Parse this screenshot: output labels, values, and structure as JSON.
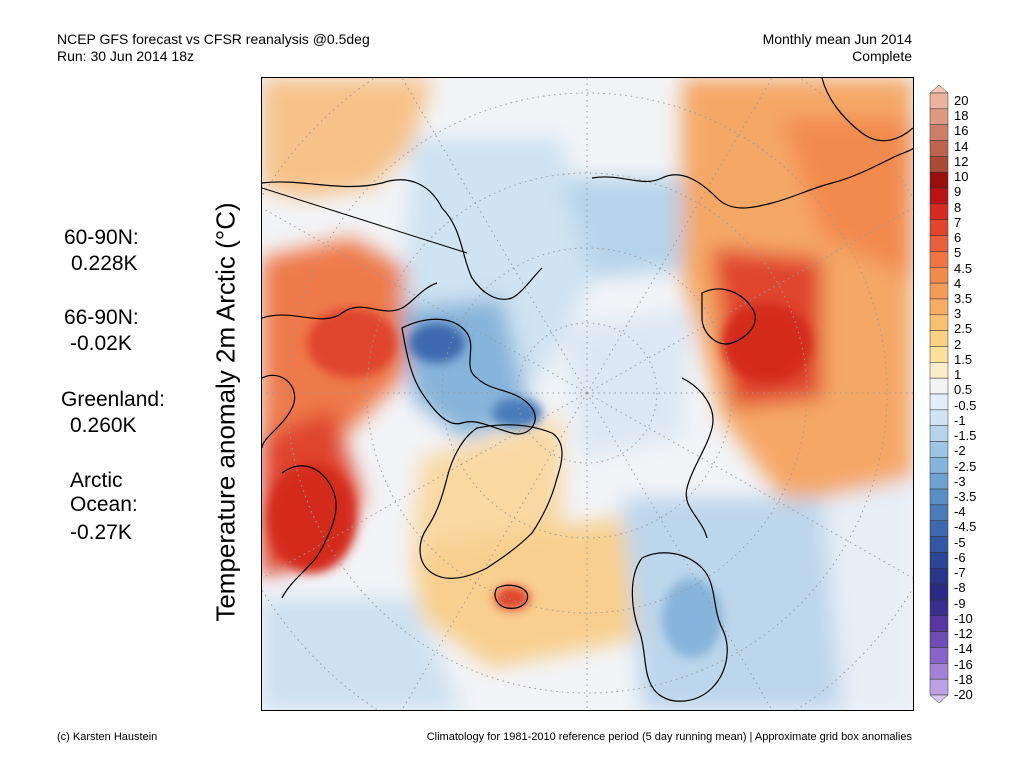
{
  "header": {
    "title_line1": "NCEP GFS forecast vs CFSR reanalysis @0.5deg",
    "title_line2": "Run: 30 Jun 2014 18z",
    "right_line1": "Monthly mean Jun 2014",
    "right_line2": "Complete"
  },
  "axis_label": "Temperature anomaly 2m Arctic (°C)",
  "stats": [
    {
      "label": "60-90N:",
      "value": "0.228K"
    },
    {
      "label": "66-90N:",
      "value": "-0.02K"
    },
    {
      "label": "Greenland:",
      "value": "0.260K"
    },
    {
      "label": "Arctic\nOcean:",
      "value": "-0.27K"
    }
  ],
  "footer": {
    "left": "(c) Karsten Haustein",
    "right": "Climatology for 1981-2010 reference period (5 day running mean) | Approximate grid box anomalies"
  },
  "colorbar": {
    "labels": [
      "20",
      "18",
      "16",
      "14",
      "12",
      "10",
      "9",
      "8",
      "7",
      "6",
      "5",
      "4.5",
      "4",
      "3.5",
      "3",
      "2.5",
      "2",
      "1.5",
      "1",
      "0.5",
      "-0.5",
      "-1",
      "-1.5",
      "-2",
      "-2.5",
      "-3",
      "-3.5",
      "-4",
      "-4.5",
      "-5",
      "-6",
      "-7",
      "-8",
      "-9",
      "-10",
      "-12",
      "-14",
      "-16",
      "-18",
      "-20"
    ],
    "colors": [
      "#f4c7b6",
      "#eab39e",
      "#dd9a83",
      "#cd7e68",
      "#bd6450",
      "#ab4a39",
      "#9b0e0e",
      "#b91414",
      "#d42a1f",
      "#e0452e",
      "#e8603c",
      "#ee7443",
      "#f28a4e",
      "#f39c5a",
      "#f5ad65",
      "#f7c072",
      "#f9d184",
      "#fae09a",
      "#fbedc7",
      "#f4f4f4",
      "#e3eef7",
      "#cfe3f2",
      "#b6d4ea",
      "#9dc4e2",
      "#86b4da",
      "#6ea2d1",
      "#5a8fc6",
      "#4a7cba",
      "#3e69ae",
      "#3357a1",
      "#2c4694",
      "#283687",
      "#2a2a82",
      "#3a2e8a",
      "#5538a0",
      "#6e4cb5",
      "#8765c7",
      "#a282d6",
      "#bca2e3",
      "#d6c6f0"
    ]
  },
  "map": {
    "background_color": "#f2f3f6",
    "land_color": "#fbeec6"
  }
}
